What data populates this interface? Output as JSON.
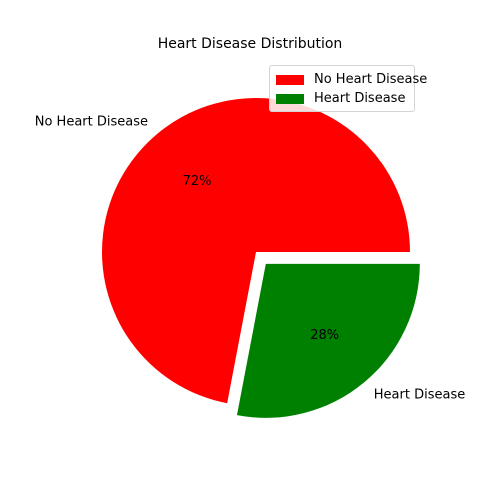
{
  "chart_data": {
    "type": "pie",
    "title": "Heart Disease Distribution",
    "slices": [
      {
        "label": "No Heart Disease",
        "value": 72,
        "pct_label": "72%",
        "color": "#ff0000",
        "exploded": false
      },
      {
        "label": "Heart Disease",
        "value": 28,
        "pct_label": "28%",
        "color": "#008000",
        "exploded": true
      }
    ],
    "legend_placement": "top-right",
    "start_angle_deg": 0,
    "direction": "counterclockwise"
  }
}
